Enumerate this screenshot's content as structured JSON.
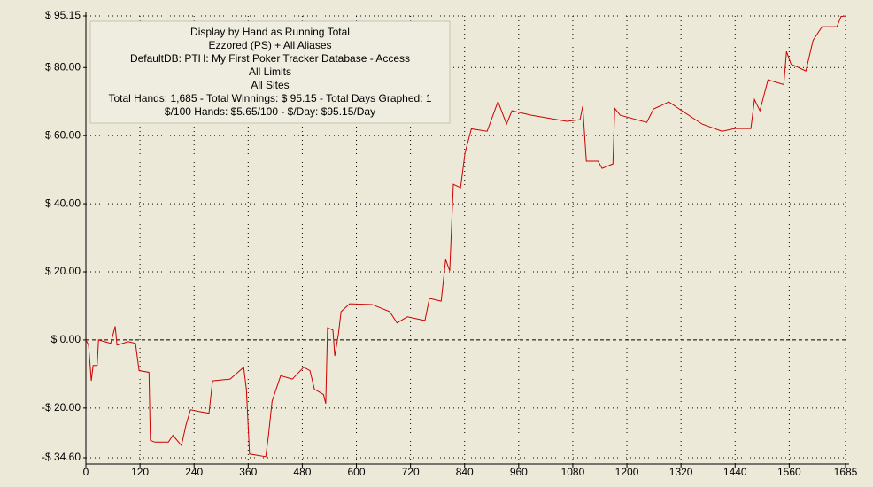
{
  "chart_data": {
    "type": "line",
    "annotations": [
      "Display by Hand as Running Total",
      "Ezzored (PS) + All Aliases",
      "DefaultDB: PTH: My First Poker Tracker Database - Access",
      "All Limits",
      "All Sites",
      "Total Hands: 1,685 - Total Winnings: $ 95.15 - Total Days Graphed: 1",
      "$/100 Hands: $5.65/100 - $/Day: $95.15/Day"
    ],
    "x": [
      0,
      6,
      12,
      16,
      25,
      28,
      55,
      65,
      69,
      94,
      110,
      118,
      140,
      143,
      153,
      183,
      193,
      212,
      222,
      232,
      251,
      273,
      281,
      320,
      350,
      356,
      363,
      399,
      405,
      413,
      432,
      458,
      483,
      497,
      507,
      527,
      532,
      536,
      548,
      552,
      560,
      566,
      585,
      635,
      674,
      690,
      713,
      752,
      762,
      788,
      798,
      807,
      815,
      831,
      841,
      855,
      890,
      914,
      933,
      945,
      988,
      1067,
      1096,
      1102,
      1110,
      1136,
      1145,
      1169,
      1173,
      1185,
      1244,
      1259,
      1293,
      1322,
      1367,
      1411,
      1440,
      1475,
      1483,
      1495,
      1513,
      1548,
      1554,
      1564,
      1597,
      1613,
      1633,
      1666,
      1675,
      1685
    ],
    "values": [
      0,
      -1.5,
      -12,
      -7.5,
      -7.5,
      0,
      -1,
      4,
      -1.5,
      -0.5,
      -1,
      -9,
      -9.5,
      -29.5,
      -30,
      -30,
      -28,
      -31,
      -25,
      -20.5,
      -21,
      -21.5,
      -12,
      -11.5,
      -8,
      -14.5,
      -33.5,
      -34.3,
      -28,
      -18,
      -10.5,
      -11.5,
      -8,
      -9,
      -14.5,
      -16,
      -18.7,
      3.6,
      2.9,
      -4.7,
      1.6,
      8.3,
      10.6,
      10.4,
      8.3,
      5,
      6.8,
      5.7,
      12.2,
      11.4,
      23.6,
      20.3,
      45.7,
      44.7,
      55,
      62,
      61.3,
      70,
      63.4,
      67.3,
      66,
      64.2,
      64.7,
      68.6,
      52.5,
      52.5,
      50.4,
      51.7,
      68,
      66,
      63.9,
      67.8,
      69.9,
      67.3,
      63.4,
      61.3,
      62.1,
      62.1,
      70.6,
      67.3,
      76.4,
      75,
      84.7,
      81,
      79,
      88,
      92,
      92,
      95,
      95.15
    ],
    "color": "#cc0000",
    "xlim": [
      0,
      1685
    ],
    "ylim": [
      -34.6,
      95.15
    ],
    "xticks": [
      0,
      120,
      240,
      360,
      480,
      600,
      720,
      840,
      960,
      1080,
      1200,
      1320,
      1440,
      1560,
      1685
    ],
    "yticks": [
      {
        "value": -34.6,
        "label": "-$ 34.60"
      },
      {
        "value": -20,
        "label": "-$ 20.00"
      },
      {
        "value": 0,
        "label": "$ 0.00"
      },
      {
        "value": 20,
        "label": "$ 20.00"
      },
      {
        "value": 40,
        "label": "$ 40.00"
      },
      {
        "value": 60,
        "label": "$ 60.00"
      },
      {
        "value": 80,
        "label": "$ 80.00"
      },
      {
        "value": 95.15,
        "label": "$ 95.15"
      }
    ],
    "grid": true
  }
}
